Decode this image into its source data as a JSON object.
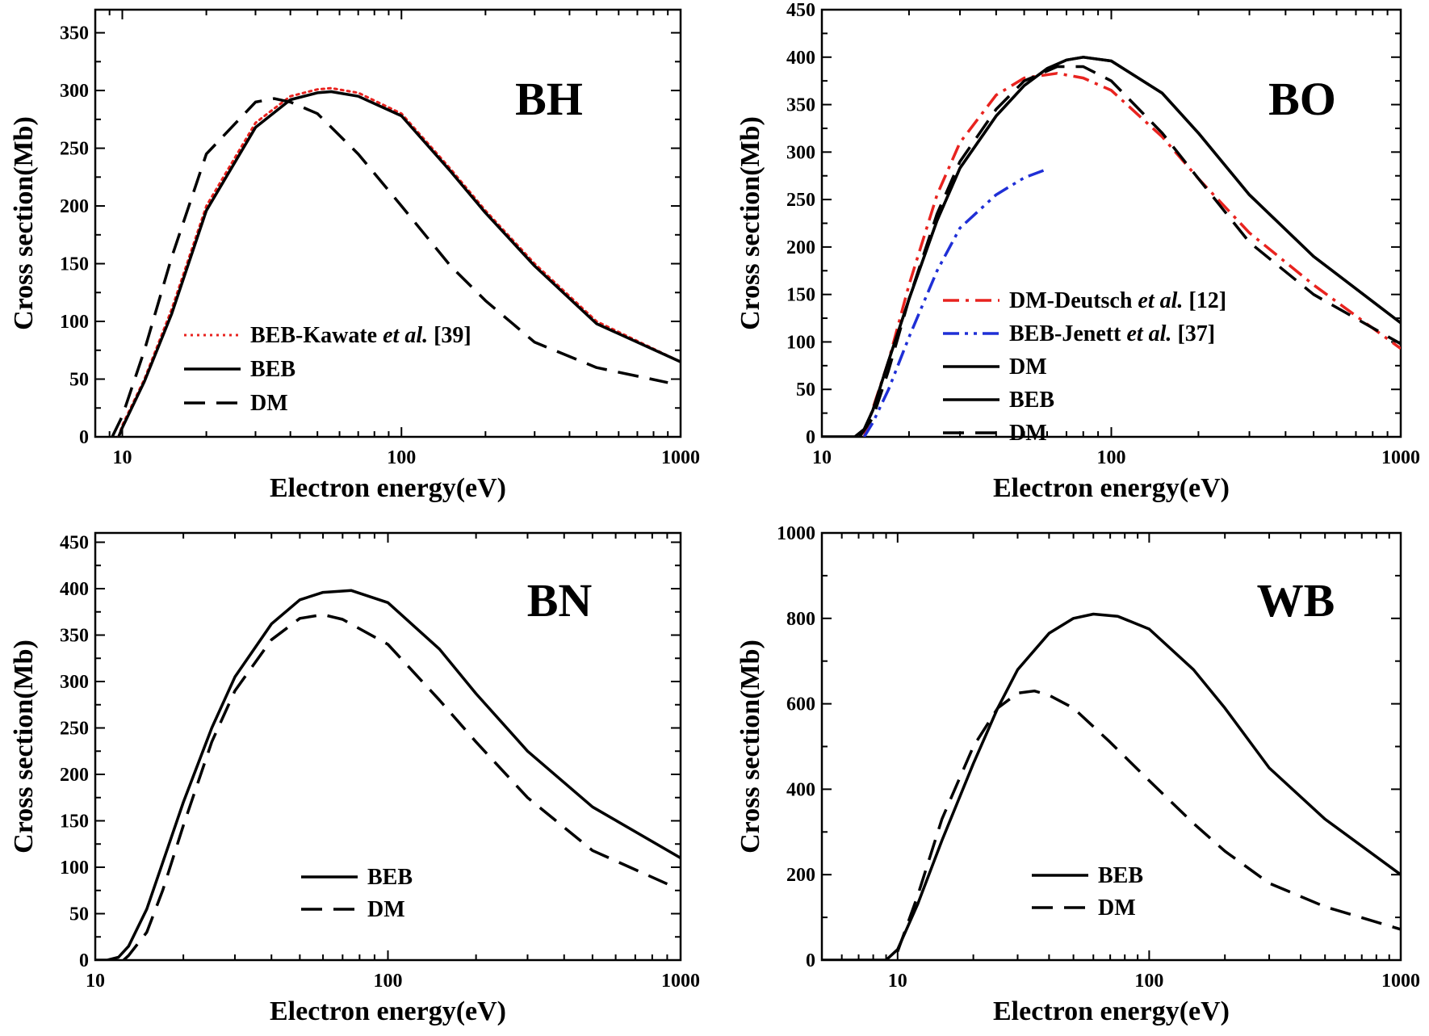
{
  "chart_data": [
    {
      "type": "line",
      "title": "BH",
      "xlabel": "Electron energy(eV)",
      "ylabel": "Cross section(Mb)",
      "xscale": "log",
      "xlim": [
        8,
        1000
      ],
      "ylim": [
        0,
        370
      ],
      "xticks": [
        10,
        100,
        1000
      ],
      "xtick_labels": [
        "10",
        "100",
        "1000"
      ],
      "yticks": [
        0,
        50,
        100,
        150,
        200,
        250,
        300,
        350
      ],
      "ytick_labels": [
        "0",
        "50",
        "100",
        "150",
        "200",
        "250",
        "300",
        "350"
      ],
      "legend_position": "lower-left",
      "series": [
        {
          "name": "BEB-Kawate et al. [39]",
          "name_parts": [
            "BEB-Kawate ",
            "et al.",
            " [39]"
          ],
          "color": "#e8231f",
          "style": "dotted",
          "x": [
            9.7,
            10,
            12,
            15,
            20,
            30,
            40,
            50,
            56,
            70,
            100,
            150,
            200,
            300,
            500,
            1000
          ],
          "y": [
            0,
            10,
            50,
            110,
            200,
            272,
            295,
            301,
            302,
            298,
            280,
            232,
            196,
            150,
            100,
            65
          ]
        },
        {
          "name": "BEB",
          "color": "#000000",
          "style": "solid",
          "x": [
            9.7,
            10,
            12,
            15,
            20,
            30,
            40,
            50,
            56,
            70,
            100,
            150,
            200,
            300,
            500,
            1000
          ],
          "y": [
            0,
            8,
            48,
            106,
            196,
            268,
            292,
            298,
            299,
            295,
            278,
            230,
            194,
            148,
            98,
            65
          ]
        },
        {
          "name": "DM",
          "color": "#000000",
          "style": "dashed",
          "x": [
            9.2,
            10,
            12,
            15,
            20,
            30,
            35,
            40,
            50,
            70,
            100,
            150,
            200,
            300,
            500,
            900
          ],
          "y": [
            0,
            18,
            75,
            155,
            245,
            290,
            293,
            290,
            280,
            245,
            200,
            148,
            118,
            82,
            60,
            47
          ]
        }
      ]
    },
    {
      "type": "line",
      "title": "BO",
      "xlabel": "Electron energy(eV)",
      "ylabel": "Cross section(Mb)",
      "xscale": "log",
      "xlim": [
        10,
        1000
      ],
      "ylim": [
        0,
        450
      ],
      "xticks": [
        10,
        100,
        1000
      ],
      "xtick_labels": [
        "10",
        "100",
        "1000"
      ],
      "yticks": [
        0,
        50,
        100,
        150,
        200,
        250,
        300,
        350,
        400,
        450
      ],
      "ytick_labels": [
        "0",
        "50",
        "100",
        "150",
        "200",
        "250",
        "300",
        "350",
        "400",
        "450"
      ],
      "legend_position": "lower-center",
      "series": [
        {
          "name": "DM-Deutsch et al. [12]",
          "name_parts": [
            "DM-Deutsch ",
            "et al.",
            " [12]"
          ],
          "color": "#e8231f",
          "style": "dashdot",
          "x": [
            14,
            15,
            17,
            20,
            25,
            30,
            40,
            50,
            65,
            80,
            100,
            150,
            200,
            300,
            500,
            1000
          ],
          "y": [
            0,
            30,
            80,
            160,
            255,
            310,
            360,
            378,
            383,
            378,
            365,
            316,
            272,
            215,
            160,
            93
          ]
        },
        {
          "name": "BEB-Jenett et al. [37]",
          "name_parts": [
            "BEB-Jenett ",
            "et al.",
            " [37]"
          ],
          "color": "#1f2fd6",
          "style": "dashdotdot",
          "x": [
            14,
            15,
            17,
            20,
            25,
            30,
            40,
            50,
            60
          ],
          "y": [
            0,
            15,
            50,
            105,
            175,
            220,
            255,
            273,
            282
          ]
        },
        {
          "name": "DM",
          "color": "#000000",
          "style": "solid",
          "x": [
            10,
            12,
            13,
            14,
            15,
            17,
            20,
            25,
            30,
            40,
            50,
            60,
            70,
            80,
            100,
            150,
            200,
            300,
            500,
            1000
          ],
          "y": [
            0,
            0,
            0,
            8,
            28,
            80,
            145,
            228,
            283,
            338,
            370,
            388,
            397,
            400,
            396,
            362,
            320,
            255,
            190,
            120
          ]
        },
        {
          "name": "BEB",
          "color": "#000000",
          "style": "solid",
          "x": [
            10,
            12,
            13,
            14,
            15,
            17,
            20,
            25,
            30,
            40,
            50,
            60,
            70,
            80,
            100,
            150,
            200,
            300,
            500,
            1000
          ],
          "y": [
            0,
            0,
            0,
            8,
            28,
            80,
            145,
            228,
            283,
            338,
            370,
            388,
            397,
            400,
            396,
            362,
            320,
            255,
            190,
            120
          ]
        },
        {
          "name": "DM",
          "color": "#000000",
          "style": "dashed",
          "x": [
            13.5,
            15,
            17,
            20,
            25,
            30,
            40,
            50,
            65,
            80,
            100,
            150,
            200,
            300,
            500,
            1000
          ],
          "y": [
            0,
            20,
            70,
            145,
            235,
            290,
            345,
            375,
            390,
            390,
            375,
            320,
            272,
            205,
            150,
            98
          ]
        }
      ]
    },
    {
      "type": "line",
      "title": "BN",
      "xlabel": "Electron energy(eV)",
      "ylabel": "Cross section(Mb)",
      "xscale": "log",
      "xlim": [
        10,
        1000
      ],
      "ylim": [
        0,
        460
      ],
      "xticks": [
        10,
        100,
        1000
      ],
      "xtick_labels": [
        "10",
        "100",
        "1000"
      ],
      "yticks": [
        0,
        50,
        100,
        150,
        200,
        250,
        300,
        350,
        400,
        450
      ],
      "ytick_labels": [
        "0",
        "50",
        "100",
        "150",
        "200",
        "250",
        "300",
        "350",
        "400",
        "450"
      ],
      "legend_position": "lower-center",
      "series": [
        {
          "name": "BEB",
          "color": "#000000",
          "style": "solid",
          "x": [
            10,
            11,
            12,
            13,
            15,
            17,
            20,
            25,
            30,
            40,
            50,
            60,
            75,
            100,
            150,
            200,
            300,
            500,
            1000
          ],
          "y": [
            0,
            0,
            3,
            15,
            55,
            105,
            170,
            250,
            305,
            362,
            388,
            396,
            398,
            385,
            335,
            287,
            225,
            165,
            110
          ]
        },
        {
          "name": "DM",
          "color": "#000000",
          "style": "dashed",
          "x": [
            12.5,
            13,
            15,
            17,
            20,
            25,
            30,
            40,
            50,
            60,
            70,
            100,
            150,
            200,
            300,
            500,
            900
          ],
          "y": [
            0,
            5,
            30,
            75,
            145,
            235,
            290,
            345,
            368,
            372,
            367,
            340,
            280,
            235,
            175,
            118,
            82
          ]
        }
      ]
    },
    {
      "type": "line",
      "title": "WB",
      "xlabel": "Electron energy(eV)",
      "ylabel": "Cross section(Mb)",
      "xscale": "log",
      "xlim": [
        5,
        1000
      ],
      "ylim": [
        0,
        1000
      ],
      "xticks": [
        10,
        100,
        1000
      ],
      "xtick_labels": [
        "10",
        "100",
        "1000"
      ],
      "yticks": [
        0,
        200,
        400,
        600,
        800,
        1000
      ],
      "ytick_labels": [
        "0",
        "200",
        "400",
        "600",
        "800",
        "1000"
      ],
      "legend_position": "lower-center",
      "series": [
        {
          "name": "BEB",
          "color": "#000000",
          "style": "solid",
          "x": [
            5,
            8,
            9,
            10,
            12,
            15,
            20,
            25,
            30,
            40,
            50,
            60,
            75,
            100,
            150,
            200,
            300,
            500,
            1000
          ],
          "y": [
            0,
            0,
            0,
            25,
            130,
            280,
            460,
            590,
            680,
            765,
            800,
            810,
            805,
            775,
            680,
            590,
            450,
            330,
            200
          ]
        },
        {
          "name": "DM",
          "color": "#000000",
          "style": "dashed",
          "x": [
            10,
            12,
            15,
            20,
            25,
            30,
            35,
            40,
            50,
            70,
            100,
            150,
            200,
            300,
            500,
            1000
          ],
          "y": [
            20,
            150,
            330,
            500,
            590,
            625,
            630,
            620,
            590,
            510,
            420,
            320,
            255,
            180,
            125,
            72
          ]
        }
      ]
    }
  ]
}
